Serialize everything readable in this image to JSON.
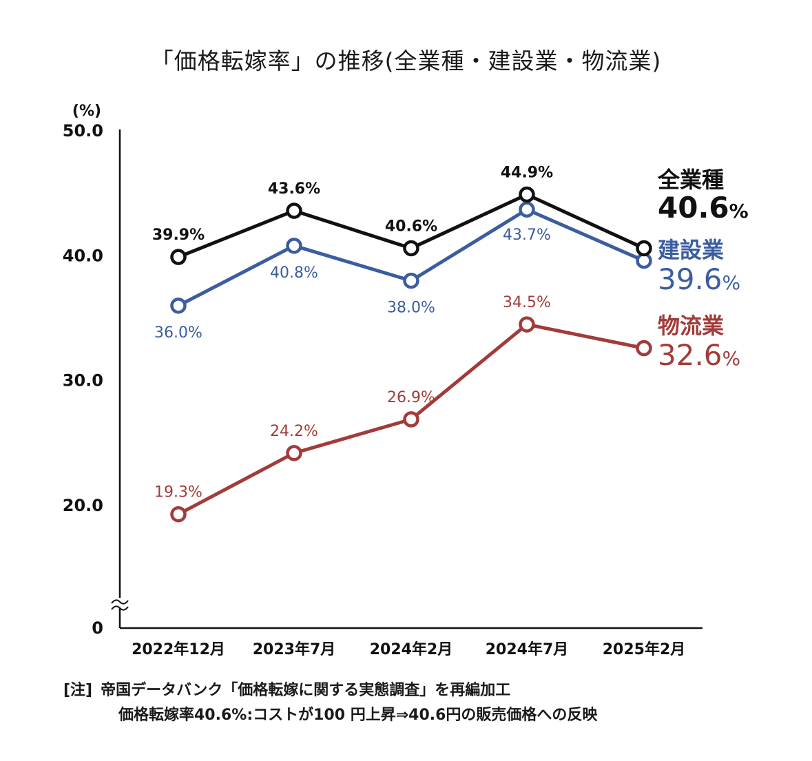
{
  "notes": {
    "label": "[注]",
    "line1": "帝国データバンク「価格転嫁に関する実態調査」を再編加工",
    "line2": "価格転嫁率40.6%:コストが100 円上昇⇒40.6円の販売価格への反映"
  },
  "chart_data": {
    "type": "line",
    "title": "「価格転嫁率」の推移(全業種・建設業・物流業)",
    "ylabel": "(%)",
    "xlabel": "",
    "categories": [
      "2022年12月",
      "2023年7月",
      "2024年2月",
      "2024年7月",
      "2025年2月"
    ],
    "ylim": [
      0,
      50
    ],
    "y_axis_break": true,
    "y_ticks": [
      {
        "value": 50,
        "label": "50.0"
      },
      {
        "value": 40,
        "label": "40.0"
      },
      {
        "value": 30,
        "label": "30.0"
      },
      {
        "value": 20,
        "label": "20.0"
      },
      {
        "value": 0,
        "label": "0"
      }
    ],
    "grid": false,
    "legend": "end-of-line labels",
    "series": [
      {
        "name": "全業種",
        "color": "#111111",
        "values": [
          39.9,
          43.6,
          40.6,
          44.9,
          40.6
        ],
        "labels": [
          "39.9%",
          "43.6%",
          "40.6%",
          "44.9%",
          ""
        ],
        "label_position": "above",
        "end_value": "40.6"
      },
      {
        "name": "建設業",
        "color": "#3b5da0",
        "values": [
          36.0,
          40.8,
          38.0,
          43.7,
          39.6
        ],
        "labels": [
          "36.0%",
          "40.8%",
          "38.0%",
          "43.7%",
          ""
        ],
        "label_position": "below",
        "end_value": "39.6"
      },
      {
        "name": "物流業",
        "color": "#a23b39",
        "values": [
          19.3,
          24.2,
          26.9,
          34.5,
          32.6
        ],
        "labels": [
          "19.3%",
          "24.2%",
          "26.9%",
          "34.5%",
          ""
        ],
        "label_position": "above",
        "end_value": "32.6"
      }
    ],
    "percent_sign": "%"
  }
}
